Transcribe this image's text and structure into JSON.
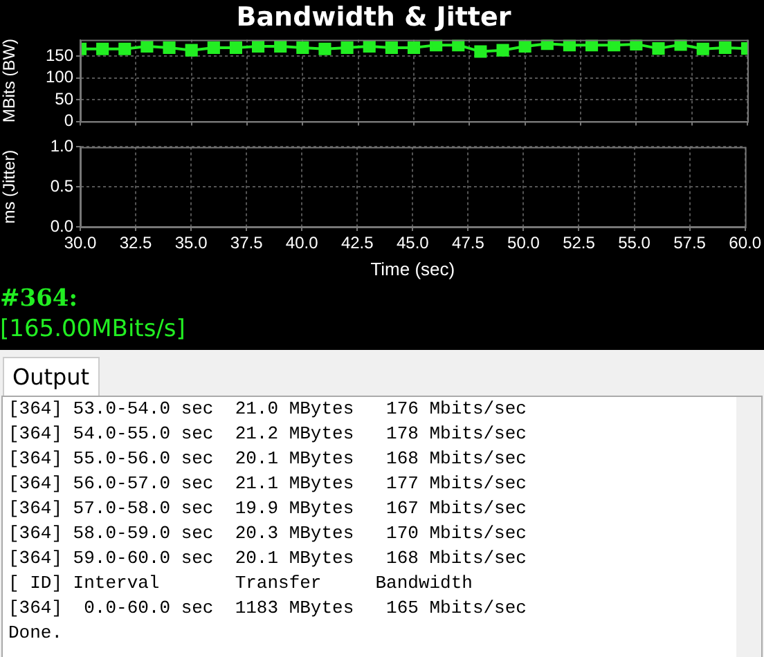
{
  "chart_data": [
    {
      "type": "line",
      "title": "Bandwidth & Jitter",
      "ylabel": "MBits (BW)",
      "x": [
        30,
        31,
        32,
        33,
        34,
        35,
        36,
        37,
        38,
        39,
        40,
        41,
        42,
        43,
        44,
        45,
        46,
        47,
        48,
        49,
        50,
        51,
        52,
        53,
        54,
        55,
        56,
        57,
        58,
        59,
        60
      ],
      "series": [
        {
          "color": "#22ee22",
          "values": [
            167,
            167,
            167,
            173,
            170,
            164,
            170,
            170,
            173,
            173,
            170,
            167,
            170,
            173,
            170,
            170,
            176,
            176,
            161,
            164,
            173,
            179,
            176,
            176,
            176,
            178,
            168,
            177,
            167,
            170,
            168
          ]
        }
      ],
      "xlim": [
        30,
        60
      ],
      "xticks": [
        {
          "value": 30,
          "label": null
        },
        {
          "value": 32.5,
          "label": null
        },
        {
          "value": 35,
          "label": null
        },
        {
          "value": 37.5,
          "label": null
        },
        {
          "value": 40,
          "label": null
        },
        {
          "value": 42.5,
          "label": null
        },
        {
          "value": 45,
          "label": null
        },
        {
          "value": 47.5,
          "label": null
        },
        {
          "value": 50,
          "label": null
        },
        {
          "value": 52.5,
          "label": null
        },
        {
          "value": 55,
          "label": null
        },
        {
          "value": 57.5,
          "label": null
        },
        {
          "value": 60,
          "label": null
        }
      ],
      "ylim": [
        0,
        188
      ],
      "yticks": [
        0,
        50,
        100,
        150
      ],
      "grid": true,
      "legend": false,
      "marker": "square",
      "line_style": "solid",
      "tick_labels": "y"
    },
    {
      "type": "line",
      "xlabel": "Time (sec)",
      "ylabel": "ms (Jitter)",
      "xlim": [
        30,
        60
      ],
      "xticks": [
        {
          "value": 30,
          "label": "30.0"
        },
        {
          "value": 32.5,
          "label": "32.5"
        },
        {
          "value": 35,
          "label": "35.0"
        },
        {
          "value": 37.5,
          "label": "37.5"
        },
        {
          "value": 40,
          "label": "40.0"
        },
        {
          "value": 42.5,
          "label": "42.5"
        },
        {
          "value": 45,
          "label": "45.0"
        },
        {
          "value": 47.5,
          "label": "47.5"
        },
        {
          "value": 50,
          "label": "50.0"
        },
        {
          "value": 52.5,
          "label": "52.5"
        },
        {
          "value": 55,
          "label": "55.0"
        },
        {
          "value": 57.5,
          "label": "57.5"
        },
        {
          "value": 60,
          "label": "60.0"
        }
      ],
      "ylim": [
        0,
        1
      ],
      "yticks": [
        {
          "value": 0,
          "label": "0.0"
        },
        {
          "value": 0.5,
          "label": "0.5"
        },
        {
          "value": 1,
          "label": "1.0"
        }
      ],
      "grid": true,
      "legend": false,
      "annotations": [
        "#364:",
        "[165.00MBits/s]"
      ]
    },
    {
      "type": "other",
      "title": "Output",
      "annotations": [
        "[364] 53.0-54.0 sec  21.0 MBytes   176 Mbits/sec",
        "[364] 54.0-55.0 sec  21.2 MBytes   178 Mbits/sec",
        "[364] 55.0-56.0 sec  20.1 MBytes   168 Mbits/sec",
        "[364] 56.0-57.0 sec  21.1 MBytes   177 Mbits/sec",
        "[364] 57.0-58.0 sec  19.9 MBytes   167 Mbits/sec",
        "[364] 58.0-59.0 sec  20.3 MBytes   170 Mbits/sec",
        "[364] 59.0-60.0 sec  20.1 MBytes   168 Mbits/sec",
        "[ ID] Interval       Transfer     Bandwidth",
        "[364]  0.0-60.0 sec  1183 MBytes   165 Mbits/sec",
        "Done."
      ]
    }
  ]
}
